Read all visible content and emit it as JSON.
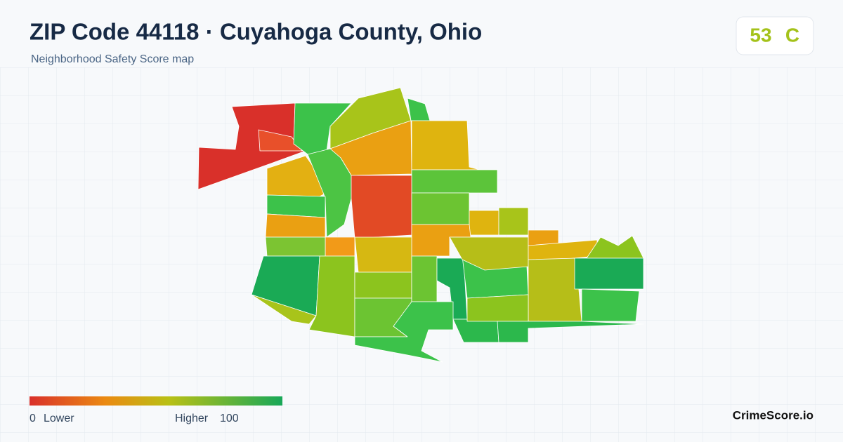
{
  "header": {
    "title": "ZIP Code 44118 · Cuyahoga County, Ohio",
    "subtitle": "Neighborhood Safety Score map"
  },
  "score": {
    "value": 53,
    "grade": "C"
  },
  "legend": {
    "min": 0,
    "min_label": "Lower",
    "max_label": "Higher",
    "max": 100
  },
  "brand": "CrimeScore.io"
}
